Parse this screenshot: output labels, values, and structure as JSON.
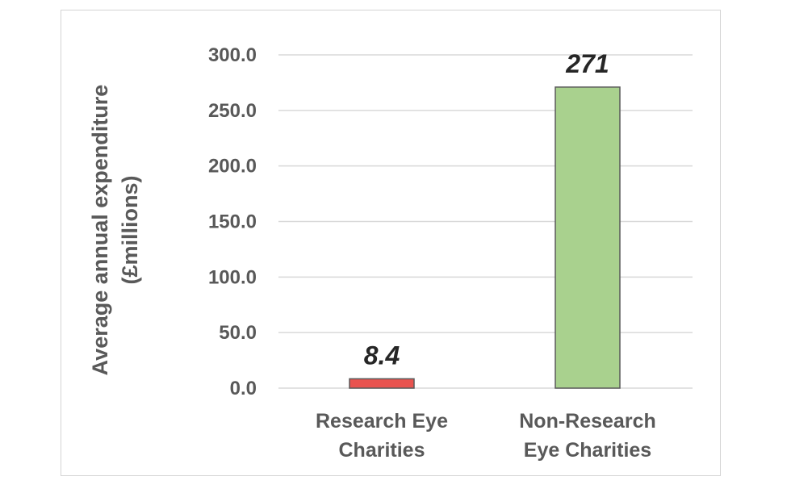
{
  "chart_data": {
    "type": "bar",
    "categories": [
      "Research Eye Charities",
      "Non-Research Eye Charities"
    ],
    "category_lines": [
      [
        "Research Eye",
        "Charities"
      ],
      [
        "Non-Research",
        "Eye Charities"
      ]
    ],
    "values": [
      8.4,
      271
    ],
    "data_labels": [
      "8.4",
      "271"
    ],
    "colors": [
      "#e8534f",
      "#a9d18e"
    ],
    "ylabel_lines": [
      "Average annual expenditure",
      "(£millions)"
    ],
    "ylim": [
      0,
      300
    ],
    "yticks": [
      0,
      50,
      100,
      150,
      200,
      250,
      300
    ],
    "ytick_labels": [
      "0.0",
      "50.0",
      "100.0",
      "150.0",
      "200.0",
      "250.0",
      "300.0"
    ],
    "grid": true
  }
}
